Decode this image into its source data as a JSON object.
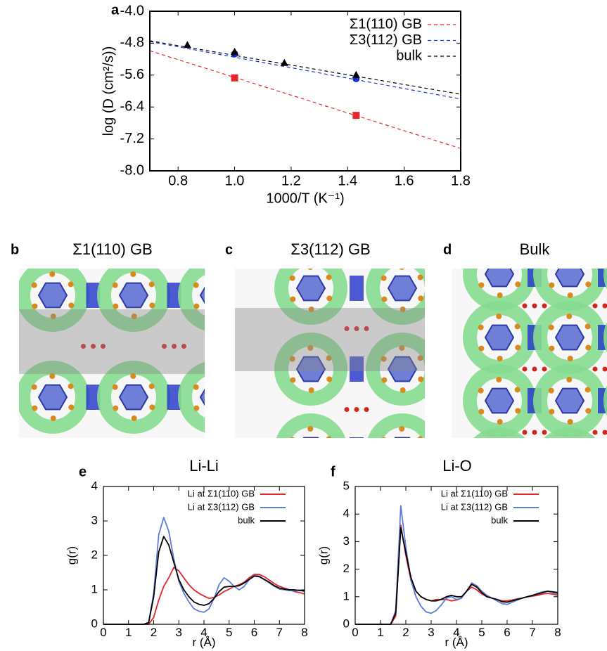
{
  "chart_data": [
    {
      "type": "scatter",
      "label": "a",
      "x_label": "1000/T (K⁻¹)",
      "y_label": "log (D (cm²/s))",
      "xlim": [
        0.7,
        1.8
      ],
      "xticks": [
        0.8,
        {
          "value": 1,
          "label": "1.0"
        },
        1.2,
        1.4,
        1.6,
        1.8
      ],
      "ylim": [
        -8,
        -4
      ],
      "yticks": [
        {
          "value": -4,
          "label": "-4.0"
        },
        -4.8,
        -5.6,
        -6.4,
        -7.2,
        {
          "value": -8,
          "label": "-8.0"
        }
      ],
      "grid": false,
      "legend": "top-right",
      "series": [
        {
          "name": "Σ1(110) GB",
          "color": "#e8262a",
          "marker": "square",
          "x": [
            1.0,
            1.43
          ],
          "values": [
            -5.67,
            -6.61
          ],
          "fit": {
            "x": [
              0.7,
              1.8
            ],
            "values": [
              -4.99,
              -7.44
            ]
          }
        },
        {
          "name": "Σ3(112) GB",
          "color": "#1a2fd0",
          "marker": "circle",
          "x": [
            1.0,
            1.43
          ],
          "values": [
            -5.07,
            -5.69
          ],
          "fit": {
            "x": [
              0.7,
              1.8
            ],
            "values": [
              -4.76,
              -6.2
            ]
          }
        },
        {
          "name": "bulk",
          "color": "#000000",
          "marker": "triangle",
          "x": [
            0.833,
            1.0,
            1.176,
            1.43
          ],
          "values": [
            -4.85,
            -5.02,
            -5.3,
            -5.6
          ],
          "fit": {
            "x": [
              0.7,
              1.8
            ],
            "values": [
              -4.74,
              -6.08
            ]
          }
        }
      ]
    },
    {
      "type": "line",
      "label": "e",
      "title": "Li-Li",
      "x_label": "r (Å)",
      "y_label": "g(r)",
      "xlim": [
        0,
        8
      ],
      "xticks": [
        0,
        1,
        2,
        3,
        4,
        5,
        6,
        7,
        8
      ],
      "ylim": [
        0,
        4
      ],
      "yticks": [
        0,
        1,
        2,
        3,
        4
      ],
      "grid": false,
      "legend": "top-right",
      "x": [
        0,
        0.2,
        0.4,
        0.6,
        0.8,
        1.0,
        1.2,
        1.4,
        1.6,
        1.8,
        2.0,
        2.2,
        2.4,
        2.6,
        2.8,
        3.0,
        3.2,
        3.4,
        3.6,
        3.8,
        4.0,
        4.2,
        4.4,
        4.6,
        4.8,
        5.0,
        5.2,
        5.4,
        5.6,
        5.8,
        6.0,
        6.2,
        6.4,
        6.6,
        6.8,
        7.0,
        7.2,
        7.4,
        7.6,
        7.8,
        8.0
      ],
      "series": [
        {
          "name": "Li at Σ1(110) GB",
          "color": "#e0262b",
          "values": [
            0,
            0,
            0,
            0,
            0,
            0,
            0,
            0,
            0,
            0,
            0.2,
            0.7,
            1.1,
            1.35,
            1.65,
            1.55,
            1.35,
            1.15,
            1.0,
            0.9,
            0.82,
            0.75,
            0.78,
            0.85,
            0.95,
            1.02,
            1.1,
            1.15,
            1.22,
            1.35,
            1.45,
            1.45,
            1.38,
            1.28,
            1.18,
            1.1,
            1.05,
            1.0,
            0.95,
            0.92,
            0.88
          ]
        },
        {
          "name": "Li at Σ3(112) GB",
          "color": "#5b7fd8",
          "values": [
            0,
            0,
            0,
            0,
            0,
            0,
            0,
            0,
            0,
            0.05,
            0.9,
            2.6,
            3.1,
            2.7,
            1.9,
            1.25,
            0.9,
            0.65,
            0.45,
            0.38,
            0.35,
            0.45,
            0.75,
            1.15,
            1.35,
            1.25,
            1.1,
            1.0,
            1.1,
            1.3,
            1.42,
            1.4,
            1.3,
            1.2,
            1.1,
            1.02,
            1.0,
            0.98,
            0.97,
            1.0,
            0.95
          ]
        },
        {
          "name": "bulk",
          "color": "#000000",
          "values": [
            0,
            0,
            0,
            0,
            0,
            0,
            0,
            0,
            0,
            0.05,
            0.8,
            2.1,
            2.55,
            2.3,
            1.8,
            1.3,
            1.0,
            0.8,
            0.65,
            0.58,
            0.55,
            0.6,
            0.75,
            0.95,
            1.08,
            1.1,
            1.1,
            1.12,
            1.2,
            1.3,
            1.4,
            1.38,
            1.3,
            1.22,
            1.12,
            1.05,
            1.02,
            1.0,
            1.0,
            0.98,
            0.97
          ]
        }
      ]
    },
    {
      "type": "line",
      "label": "f",
      "title": "Li-O",
      "x_label": "r (Å)",
      "y_label": "g(r)",
      "xlim": [
        0,
        8
      ],
      "xticks": [
        0,
        1,
        2,
        3,
        4,
        5,
        6,
        7,
        8
      ],
      "ylim": [
        0,
        5
      ],
      "yticks": [
        0,
        1,
        2,
        3,
        4,
        5
      ],
      "grid": false,
      "legend": "top-right",
      "x": [
        0,
        0.2,
        0.4,
        0.6,
        0.8,
        1.0,
        1.2,
        1.4,
        1.6,
        1.8,
        2.0,
        2.2,
        2.4,
        2.6,
        2.8,
        3.0,
        3.2,
        3.4,
        3.6,
        3.8,
        4.0,
        4.2,
        4.4,
        4.6,
        4.8,
        5.0,
        5.2,
        5.4,
        5.6,
        5.8,
        6.0,
        6.2,
        6.4,
        6.6,
        6.8,
        7.0,
        7.2,
        7.4,
        7.6,
        7.8,
        8.0
      ],
      "series": [
        {
          "name": "Li at Σ1(110) GB",
          "color": "#e0262b",
          "values": [
            0,
            0,
            0,
            0,
            0,
            0,
            0,
            0,
            0.3,
            3.6,
            2.5,
            1.6,
            1.2,
            1.0,
            0.9,
            0.85,
            0.9,
            0.9,
            0.9,
            0.85,
            0.88,
            0.95,
            1.2,
            1.35,
            1.25,
            1.1,
            1.0,
            0.95,
            0.9,
            0.85,
            0.85,
            0.88,
            0.92,
            0.95,
            1.0,
            1.02,
            1.05,
            1.1,
            1.12,
            1.1,
            1.05
          ]
        },
        {
          "name": "Li at Σ3(112) GB",
          "color": "#5b7fd8",
          "values": [
            0,
            0,
            0,
            0,
            0,
            0,
            0,
            0,
            0.5,
            4.3,
            2.8,
            1.6,
            1.0,
            0.65,
            0.45,
            0.4,
            0.5,
            0.7,
            0.95,
            1.0,
            0.9,
            0.95,
            1.2,
            1.5,
            1.4,
            1.2,
            1.05,
            0.95,
            0.85,
            0.75,
            0.72,
            0.8,
            0.88,
            0.95,
            1.0,
            1.05,
            1.12,
            1.18,
            1.2,
            1.15,
            1.1
          ]
        },
        {
          "name": "bulk",
          "color": "#000000",
          "values": [
            0,
            0,
            0,
            0,
            0,
            0,
            0,
            0,
            0.4,
            3.5,
            2.6,
            1.7,
            1.2,
            1.0,
            0.9,
            0.85,
            0.85,
            0.9,
            1.0,
            1.05,
            1.0,
            1.0,
            1.2,
            1.45,
            1.35,
            1.15,
            1.0,
            0.95,
            0.9,
            0.82,
            0.8,
            0.85,
            0.9,
            0.95,
            1.0,
            1.05,
            1.1,
            1.15,
            1.2,
            1.18,
            1.15
          ]
        }
      ]
    }
  ],
  "structure_panels": [
    {
      "label": "b",
      "title": "Σ1(110) GB"
    },
    {
      "label": "c",
      "title": "Σ3(112) GB"
    },
    {
      "label": "d",
      "title": "Bulk"
    }
  ]
}
